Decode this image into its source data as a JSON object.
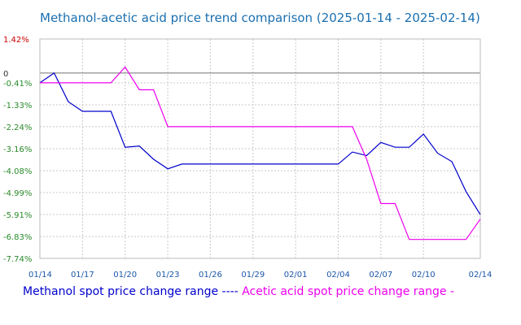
{
  "chart_data": {
    "type": "line",
    "title": "Methanol-acetic acid price trend comparison (2025-01-14 - 2025-02-14)",
    "xlabel": "",
    "ylabel": "",
    "x_ticks": [
      "01/14",
      "01/17",
      "01/20",
      "01/23",
      "01/26",
      "01/29",
      "02/01",
      "02/04",
      "02/07",
      "02/10",
      "02/14"
    ],
    "y_ticks": [
      "1.42%",
      "0",
      "-0.41%",
      "-1.33%",
      "-2.24%",
      "-3.16%",
      "-4.08%",
      "-4.99%",
      "-5.91%",
      "-6.83%",
      "-7.74%"
    ],
    "ylim": [
      -7.74,
      1.42
    ],
    "grid": true,
    "legend_position": "bottom",
    "legend_text": "Methanol spot price change range ---- Acetic acid spot price change range -",
    "colors": {
      "methanol": "#0000cc",
      "acetic": "#ee00ee",
      "positive_tick": "#cc0000",
      "negative_tick": "#2a8a2a",
      "zero_line": "#777777",
      "grid": "#c8c8c8"
    },
    "series": [
      {
        "name": "Methanol spot price change range",
        "x": [
          "01/14",
          "01/15",
          "01/16",
          "01/17",
          "01/18",
          "01/19",
          "01/20",
          "01/21",
          "01/22",
          "01/23",
          "01/24",
          "01/25",
          "01/26",
          "01/27",
          "01/28",
          "01/29",
          "01/30",
          "01/31",
          "02/01",
          "02/02",
          "02/03",
          "02/04",
          "02/05",
          "02/06",
          "02/07",
          "02/08",
          "02/09",
          "02/10",
          "02/11",
          "02/12",
          "02/13",
          "02/14"
        ],
        "values": [
          -0.41,
          0,
          -1.2,
          -1.6,
          -1.6,
          -1.6,
          -3.1,
          -3.05,
          -3.6,
          -4.0,
          -3.8,
          -3.8,
          -3.8,
          -3.8,
          -3.8,
          -3.8,
          -3.8,
          -3.8,
          -3.8,
          -3.8,
          -3.8,
          -3.8,
          -3.3,
          -3.45,
          -2.9,
          -3.1,
          -3.1,
          -2.55,
          -3.35,
          -3.7,
          -4.95,
          -5.91
        ]
      },
      {
        "name": "Acetic acid spot price change range",
        "x": [
          "01/14",
          "01/15",
          "01/16",
          "01/17",
          "01/18",
          "01/19",
          "01/20",
          "01/21",
          "01/22",
          "01/23",
          "01/24",
          "01/25",
          "01/26",
          "01/27",
          "01/28",
          "01/29",
          "01/30",
          "01/31",
          "02/01",
          "02/02",
          "02/03",
          "02/04",
          "02/05",
          "02/06",
          "02/07",
          "02/08",
          "02/09",
          "02/10",
          "02/11",
          "02/12",
          "02/13",
          "02/14"
        ],
        "values": [
          -0.41,
          -0.41,
          -0.41,
          -0.41,
          -0.41,
          -0.41,
          0.25,
          -0.7,
          -0.7,
          -2.24,
          -2.24,
          -2.24,
          -2.24,
          -2.24,
          -2.24,
          -2.24,
          -2.24,
          -2.24,
          -2.24,
          -2.24,
          -2.24,
          -2.24,
          -2.24,
          -3.6,
          -5.45,
          -5.45,
          -6.95,
          -6.95,
          -6.95,
          -6.95,
          -6.95,
          -6.1
        ]
      }
    ]
  }
}
